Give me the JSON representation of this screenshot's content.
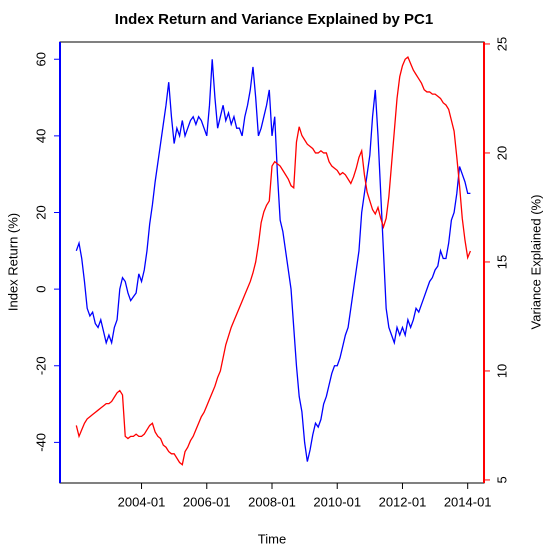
{
  "chart_data": {
    "type": "line",
    "title": "Index Return and Variance Explained by PC1",
    "xlabel": "Time",
    "ylabel": "Index Return (%)",
    "y2label": "Variance Explained (%)",
    "x": [
      "2002-01",
      "2002-02",
      "2002-03",
      "2002-04",
      "2002-05",
      "2002-06",
      "2002-07",
      "2002-08",
      "2002-09",
      "2002-10",
      "2002-11",
      "2002-12",
      "2003-01",
      "2003-02",
      "2003-03",
      "2003-04",
      "2003-05",
      "2003-06",
      "2003-07",
      "2003-08",
      "2003-09",
      "2003-10",
      "2003-11",
      "2003-12",
      "2004-01",
      "2004-02",
      "2004-03",
      "2004-04",
      "2004-05",
      "2004-06",
      "2004-07",
      "2004-08",
      "2004-09",
      "2004-10",
      "2004-11",
      "2004-12",
      "2005-01",
      "2005-02",
      "2005-03",
      "2005-04",
      "2005-05",
      "2005-06",
      "2005-07",
      "2005-08",
      "2005-09",
      "2005-10",
      "2005-11",
      "2005-12",
      "2006-01",
      "2006-02",
      "2006-03",
      "2006-04",
      "2006-05",
      "2006-06",
      "2006-07",
      "2006-08",
      "2006-09",
      "2006-10",
      "2006-11",
      "2006-12",
      "2007-01",
      "2007-02",
      "2007-03",
      "2007-04",
      "2007-05",
      "2007-06",
      "2007-07",
      "2007-08",
      "2007-09",
      "2007-10",
      "2007-11",
      "2007-12",
      "2008-01",
      "2008-02",
      "2008-03",
      "2008-04",
      "2008-05",
      "2008-06",
      "2008-07",
      "2008-08",
      "2008-09",
      "2008-10",
      "2008-11",
      "2008-12",
      "2009-01",
      "2009-02",
      "2009-03",
      "2009-04",
      "2009-05",
      "2009-06",
      "2009-07",
      "2009-08",
      "2009-09",
      "2009-10",
      "2009-11",
      "2009-12",
      "2010-01",
      "2010-02",
      "2010-03",
      "2010-04",
      "2010-05",
      "2010-06",
      "2010-07",
      "2010-08",
      "2010-09",
      "2010-10",
      "2010-11",
      "2010-12",
      "2011-01",
      "2011-02",
      "2011-03",
      "2011-04",
      "2011-05",
      "2011-06",
      "2011-07",
      "2011-08",
      "2011-09",
      "2011-10",
      "2011-11",
      "2011-12",
      "2012-01",
      "2012-02",
      "2012-03",
      "2012-04",
      "2012-05",
      "2012-06",
      "2012-07",
      "2012-08",
      "2012-09",
      "2012-10",
      "2012-11",
      "2012-12",
      "2013-01",
      "2013-02",
      "2013-03",
      "2013-04",
      "2013-05",
      "2013-06",
      "2013-07",
      "2013-08",
      "2013-09",
      "2013-10",
      "2013-11",
      "2013-12",
      "2014-01",
      "2014-02"
    ],
    "series": [
      {
        "name": "Index Return",
        "color": "#0000ff",
        "axis": "y",
        "values": [
          10,
          12,
          8,
          2,
          -5,
          -7,
          -6,
          -9,
          -10,
          -8,
          -11,
          -14,
          -12,
          -14,
          -10,
          -8,
          0,
          3,
          2,
          -1,
          -3,
          -2,
          -1,
          4,
          2,
          5,
          10,
          17,
          22,
          28,
          33,
          38,
          43,
          48,
          54,
          45,
          38,
          42,
          40,
          44,
          40,
          42,
          44,
          45,
          43,
          45,
          44,
          42,
          40,
          48,
          60,
          50,
          42,
          45,
          48,
          44,
          46,
          43,
          45,
          42,
          42,
          40,
          45,
          48,
          52,
          58,
          50,
          40,
          42,
          45,
          48,
          52,
          40,
          45,
          30,
          18,
          15,
          10,
          5,
          0,
          -10,
          -20,
          -28,
          -32,
          -40,
          -45,
          -42,
          -38,
          -35,
          -36,
          -34,
          -30,
          -28,
          -25,
          -22,
          -20,
          -20,
          -18,
          -15,
          -12,
          -10,
          -5,
          0,
          5,
          10,
          20,
          25,
          30,
          35,
          45,
          52,
          40,
          25,
          10,
          -5,
          -10,
          -12,
          -14,
          -10,
          -12,
          -10,
          -12,
          -8,
          -10,
          -8,
          -5,
          -6,
          -4,
          -2,
          0,
          2,
          3,
          5,
          6,
          10,
          8,
          8,
          12,
          18,
          20,
          25,
          32,
          30,
          28,
          25,
          25
        ]
      },
      {
        "name": "Variance Explained",
        "color": "#ff0000",
        "axis": "y2",
        "values": [
          7.5,
          7.0,
          7.3,
          7.6,
          7.8,
          7.9,
          8.0,
          8.1,
          8.2,
          8.3,
          8.4,
          8.5,
          8.5,
          8.6,
          8.8,
          9.0,
          9.1,
          8.9,
          7.0,
          6.9,
          7.0,
          7.0,
          7.1,
          7.0,
          7.0,
          7.1,
          7.3,
          7.5,
          7.6,
          7.2,
          7.0,
          6.9,
          6.6,
          6.5,
          6.3,
          6.2,
          6.2,
          6.0,
          5.8,
          5.7,
          6.3,
          6.5,
          6.8,
          7.0,
          7.3,
          7.6,
          7.9,
          8.1,
          8.4,
          8.7,
          9.0,
          9.3,
          9.7,
          10.0,
          10.6,
          11.2,
          11.6,
          12.0,
          12.3,
          12.6,
          12.9,
          13.2,
          13.5,
          13.8,
          14.1,
          14.5,
          15.0,
          15.8,
          16.8,
          17.3,
          17.6,
          17.8,
          19.4,
          19.6,
          19.5,
          19.4,
          19.2,
          19.0,
          18.8,
          18.5,
          18.4,
          20.5,
          21.2,
          20.8,
          20.6,
          20.4,
          20.3,
          20.2,
          20.0,
          20.0,
          20.1,
          20.0,
          20.0,
          19.6,
          19.4,
          19.3,
          19.2,
          19.0,
          19.1,
          19.0,
          18.8,
          18.6,
          18.9,
          19.3,
          19.8,
          20.1,
          19.0,
          18.2,
          17.8,
          17.4,
          17.2,
          17.5,
          17.0,
          16.6,
          17.0,
          18.0,
          19.5,
          21.0,
          22.5,
          23.5,
          24.0,
          24.3,
          24.4,
          24.1,
          23.8,
          23.6,
          23.4,
          23.2,
          22.9,
          22.8,
          22.8,
          22.7,
          22.7,
          22.6,
          22.5,
          22.3,
          22.2,
          22.0,
          21.5,
          21.0,
          19.8,
          18.5,
          17.0,
          16.0,
          15.2,
          15.5
        ]
      }
    ],
    "xlim": [
      "2001-07",
      "2014-07"
    ],
    "xticks": [
      "2004-01",
      "2006-01",
      "2008-01",
      "2010-01",
      "2012-01",
      "2014-01"
    ],
    "ylim": [
      -50.6,
      64.5
    ],
    "yticks": [
      -40,
      -20,
      0,
      20,
      40,
      60
    ],
    "y2lim": [
      4.86,
      25.09
    ],
    "y2ticks": [
      5,
      10,
      15,
      20,
      25
    ]
  }
}
